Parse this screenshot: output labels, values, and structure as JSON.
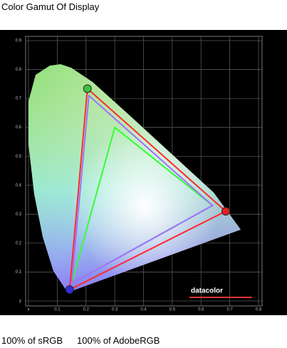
{
  "chart_data": {
    "type": "gamut",
    "title": "Color Gamut Of Display",
    "xlim": [
      0,
      0.8
    ],
    "ylim": [
      0,
      0.9
    ],
    "xticks": [
      {
        "value": 0,
        "label": "x"
      },
      0.1,
      0.2,
      0.3,
      0.4,
      0.5,
      0.6,
      0.7,
      0.8
    ],
    "yticks": [
      {
        "value": 0,
        "label": "y"
      },
      0.1,
      0.2,
      0.3,
      0.4,
      0.5,
      0.6,
      0.7,
      0.8,
      0.9
    ],
    "grid": true,
    "series": [
      {
        "color": "#ff2a2a",
        "x": [
          0.205,
          0.686,
          0.143
        ],
        "y": [
          0.734,
          0.31,
          0.039
        ],
        "markers": true
      },
      {
        "color": "#a070ff",
        "x": [
          0.21,
          0.64,
          0.15
        ],
        "y": [
          0.71,
          0.33,
          0.06
        ],
        "markers": false
      },
      {
        "color": "#33ff33",
        "x": [
          0.3,
          0.64,
          0.15
        ],
        "y": [
          0.6,
          0.33,
          0.06
        ],
        "markers": false
      }
    ],
    "watermark": "datacolor",
    "annotations": [
      "100% of sRGB",
      "100% of AdobeRGB"
    ]
  }
}
